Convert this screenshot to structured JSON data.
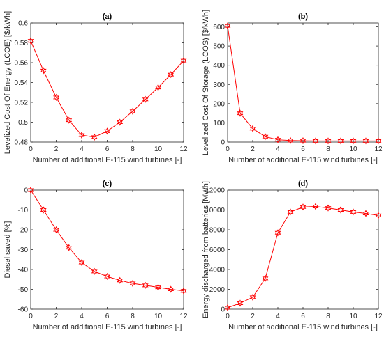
{
  "chart_data": [
    {
      "type": "line",
      "title": "(a)",
      "xlabel": "Number of additional E-115 wind turbines [-]",
      "ylabel": "Levelized Cost Of Energy (LCOE) [$/kWh]",
      "xlim": [
        0,
        12
      ],
      "ylim": [
        0.48,
        0.6
      ],
      "xticks": [
        0,
        2,
        4,
        6,
        8,
        10,
        12
      ],
      "yticks": [
        0.48,
        0.5,
        0.52,
        0.54,
        0.56,
        0.58,
        0.6
      ],
      "xtick_labels": [
        "0",
        "2",
        "4",
        "6",
        "8",
        "10",
        "12"
      ],
      "ytick_labels": [
        "0.48",
        "0.5",
        "0.52",
        "0.54",
        "0.56",
        "0.58",
        "0.6"
      ],
      "x": [
        0,
        1,
        2,
        3,
        4,
        5,
        6,
        7,
        8,
        9,
        10,
        11,
        12
      ],
      "series": [
        {
          "values": [
            0.582,
            0.552,
            0.525,
            0.502,
            0.487,
            0.485,
            0.491,
            0.5,
            0.511,
            0.523,
            0.535,
            0.548,
            0.562
          ]
        }
      ],
      "color": "#ff0000",
      "marker": "hexagram",
      "grid": false
    },
    {
      "type": "line",
      "title": "(b)",
      "xlabel": "Number of additional E-115 wind turbines [-]",
      "ylabel": "Levelized Cost Of Storage (LCOS) [$/kWh]",
      "xlim": [
        0,
        12
      ],
      "ylim": [
        0,
        620
      ],
      "xticks": [
        0,
        2,
        4,
        6,
        8,
        10,
        12
      ],
      "yticks": [
        0,
        100,
        200,
        300,
        400,
        500,
        600
      ],
      "xtick_labels": [
        "0",
        "2",
        "4",
        "6",
        "8",
        "10",
        "12"
      ],
      "ytick_labels": [
        "0",
        "100",
        "200",
        "300",
        "400",
        "500",
        "600"
      ],
      "x": [
        0,
        1,
        2,
        3,
        4,
        5,
        6,
        7,
        8,
        9,
        10,
        11,
        12
      ],
      "series": [
        {
          "values": [
            605,
            150,
            70,
            28,
            12,
            8,
            7,
            6,
            6,
            6,
            6,
            6,
            6
          ]
        }
      ],
      "color": "#ff0000",
      "marker": "hexagram",
      "grid": false
    },
    {
      "type": "line",
      "title": "(c)",
      "xlabel": "Number of additional E-115 wind turbines [-]",
      "ylabel": "Diesel saved [%]",
      "xlim": [
        0,
        12
      ],
      "ylim": [
        -60,
        0
      ],
      "xticks": [
        0,
        2,
        4,
        6,
        8,
        10,
        12
      ],
      "yticks": [
        -60,
        -50,
        -40,
        -30,
        -20,
        -10,
        0
      ],
      "xtick_labels": [
        "0",
        "2",
        "4",
        "6",
        "8",
        "10",
        "12"
      ],
      "ytick_labels": [
        "-60",
        "-50",
        "-40",
        "-30",
        "-20",
        "-10",
        "0"
      ],
      "x": [
        0,
        1,
        2,
        3,
        4,
        5,
        6,
        7,
        8,
        9,
        10,
        11,
        12
      ],
      "series": [
        {
          "values": [
            0,
            -10,
            -20,
            -29,
            -36.5,
            -41,
            -43.5,
            -45.5,
            -47,
            -48,
            -49,
            -50,
            -50.8
          ]
        }
      ],
      "color": "#ff0000",
      "marker": "hexagram",
      "grid": false
    },
    {
      "type": "line",
      "title": "(d)",
      "xlabel": "Number of additional E-115 wind turbines [-]",
      "ylabel": "Energy discharged from batteries [MWh]",
      "xlim": [
        0,
        12
      ],
      "ylim": [
        0,
        12000
      ],
      "xticks": [
        0,
        2,
        4,
        6,
        8,
        10,
        12
      ],
      "yticks": [
        0,
        2000,
        4000,
        6000,
        8000,
        10000,
        12000
      ],
      "xtick_labels": [
        "0",
        "2",
        "4",
        "6",
        "8",
        "10",
        "12"
      ],
      "ytick_labels": [
        "0",
        "2000",
        "4000",
        "6000",
        "8000",
        "10000",
        "12000"
      ],
      "x": [
        0,
        1,
        2,
        3,
        4,
        5,
        6,
        7,
        8,
        9,
        10,
        11,
        12
      ],
      "series": [
        {
          "values": [
            150,
            600,
            1200,
            3100,
            7700,
            9800,
            10300,
            10350,
            10200,
            10000,
            9800,
            9650,
            9450
          ]
        }
      ],
      "color": "#ff0000",
      "marker": "hexagram",
      "grid": false
    }
  ]
}
